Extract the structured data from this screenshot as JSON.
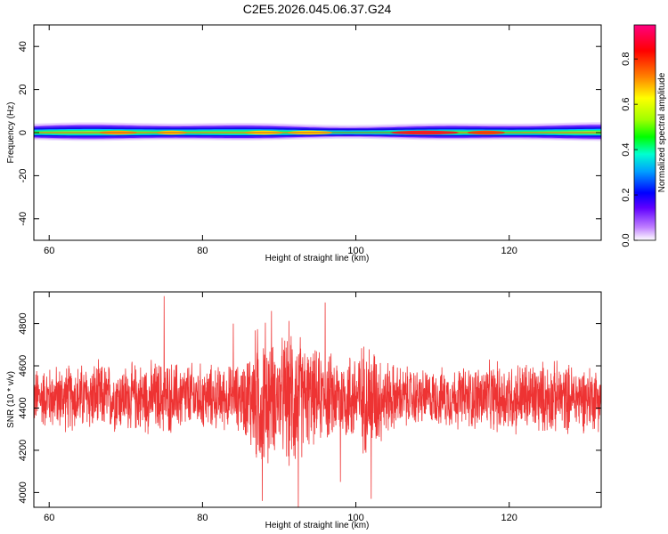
{
  "figure": {
    "title": "C2E5.2026.045.06.37.G24"
  },
  "chart_data": [
    {
      "type": "heatmap",
      "title": "",
      "xlabel": "Height of straight line (km)",
      "ylabel": "Frequency (Hz)",
      "xlim": [
        58,
        132
      ],
      "ylim": [
        -50,
        50
      ],
      "xticks": [
        60,
        80,
        100,
        120
      ],
      "yticks": [
        40,
        20,
        0,
        -20,
        -40
      ],
      "band_center_hz": 0,
      "band_halfwidth_hz": 3,
      "colorbar": {
        "label": "Normalized spectral amplitude",
        "range": [
          0,
          0.95
        ],
        "ticks": [
          "0.0",
          "0.2",
          "0.4",
          "0.6",
          "0.8"
        ],
        "tick_values": [
          0,
          0.2,
          0.4,
          0.6,
          0.8
        ],
        "colormap": [
          "#ffffff",
          "#c080ff",
          "#6000ff",
          "#0000ff",
          "#00a0ff",
          "#00ffd0",
          "#00ff00",
          "#a0ff00",
          "#ffff00",
          "#ff8000",
          "#ff0000",
          "#ff0080"
        ]
      }
    },
    {
      "type": "line",
      "title": "",
      "xlabel": "Height of straight line (km)",
      "ylabel": "SNR (10 * v/v)",
      "xlim": [
        58,
        132
      ],
      "ylim": [
        3930,
        4950
      ],
      "xticks": [
        60,
        80,
        100,
        120
      ],
      "yticks": [
        4000,
        4200,
        4400,
        4600,
        4800
      ],
      "series": [
        {
          "color": "#ee3333",
          "mean": 4450,
          "envelope_x": [
            58,
            62,
            66,
            70,
            74,
            78,
            82,
            85,
            86,
            87,
            88,
            89,
            90,
            91,
            92,
            93,
            94,
            96,
            98,
            100,
            102,
            104,
            106,
            110,
            114,
            118,
            122,
            126,
            130,
            132
          ],
          "envelope_half": [
            160,
            180,
            190,
            180,
            200,
            190,
            170,
            180,
            260,
            380,
            450,
            300,
            280,
            380,
            420,
            320,
            260,
            240,
            230,
            270,
            320,
            200,
            170,
            150,
            170,
            190,
            200,
            190,
            180,
            170
          ],
          "spikes": [
            [
              75,
              4930
            ],
            [
              84,
              4800
            ],
            [
              87.8,
              3960
            ],
            [
              92.5,
              3930
            ],
            [
              96,
              4900
            ],
            [
              102,
              3970
            ],
            [
              98,
              4050
            ],
            [
              89,
              4860
            ]
          ]
        }
      ]
    }
  ]
}
